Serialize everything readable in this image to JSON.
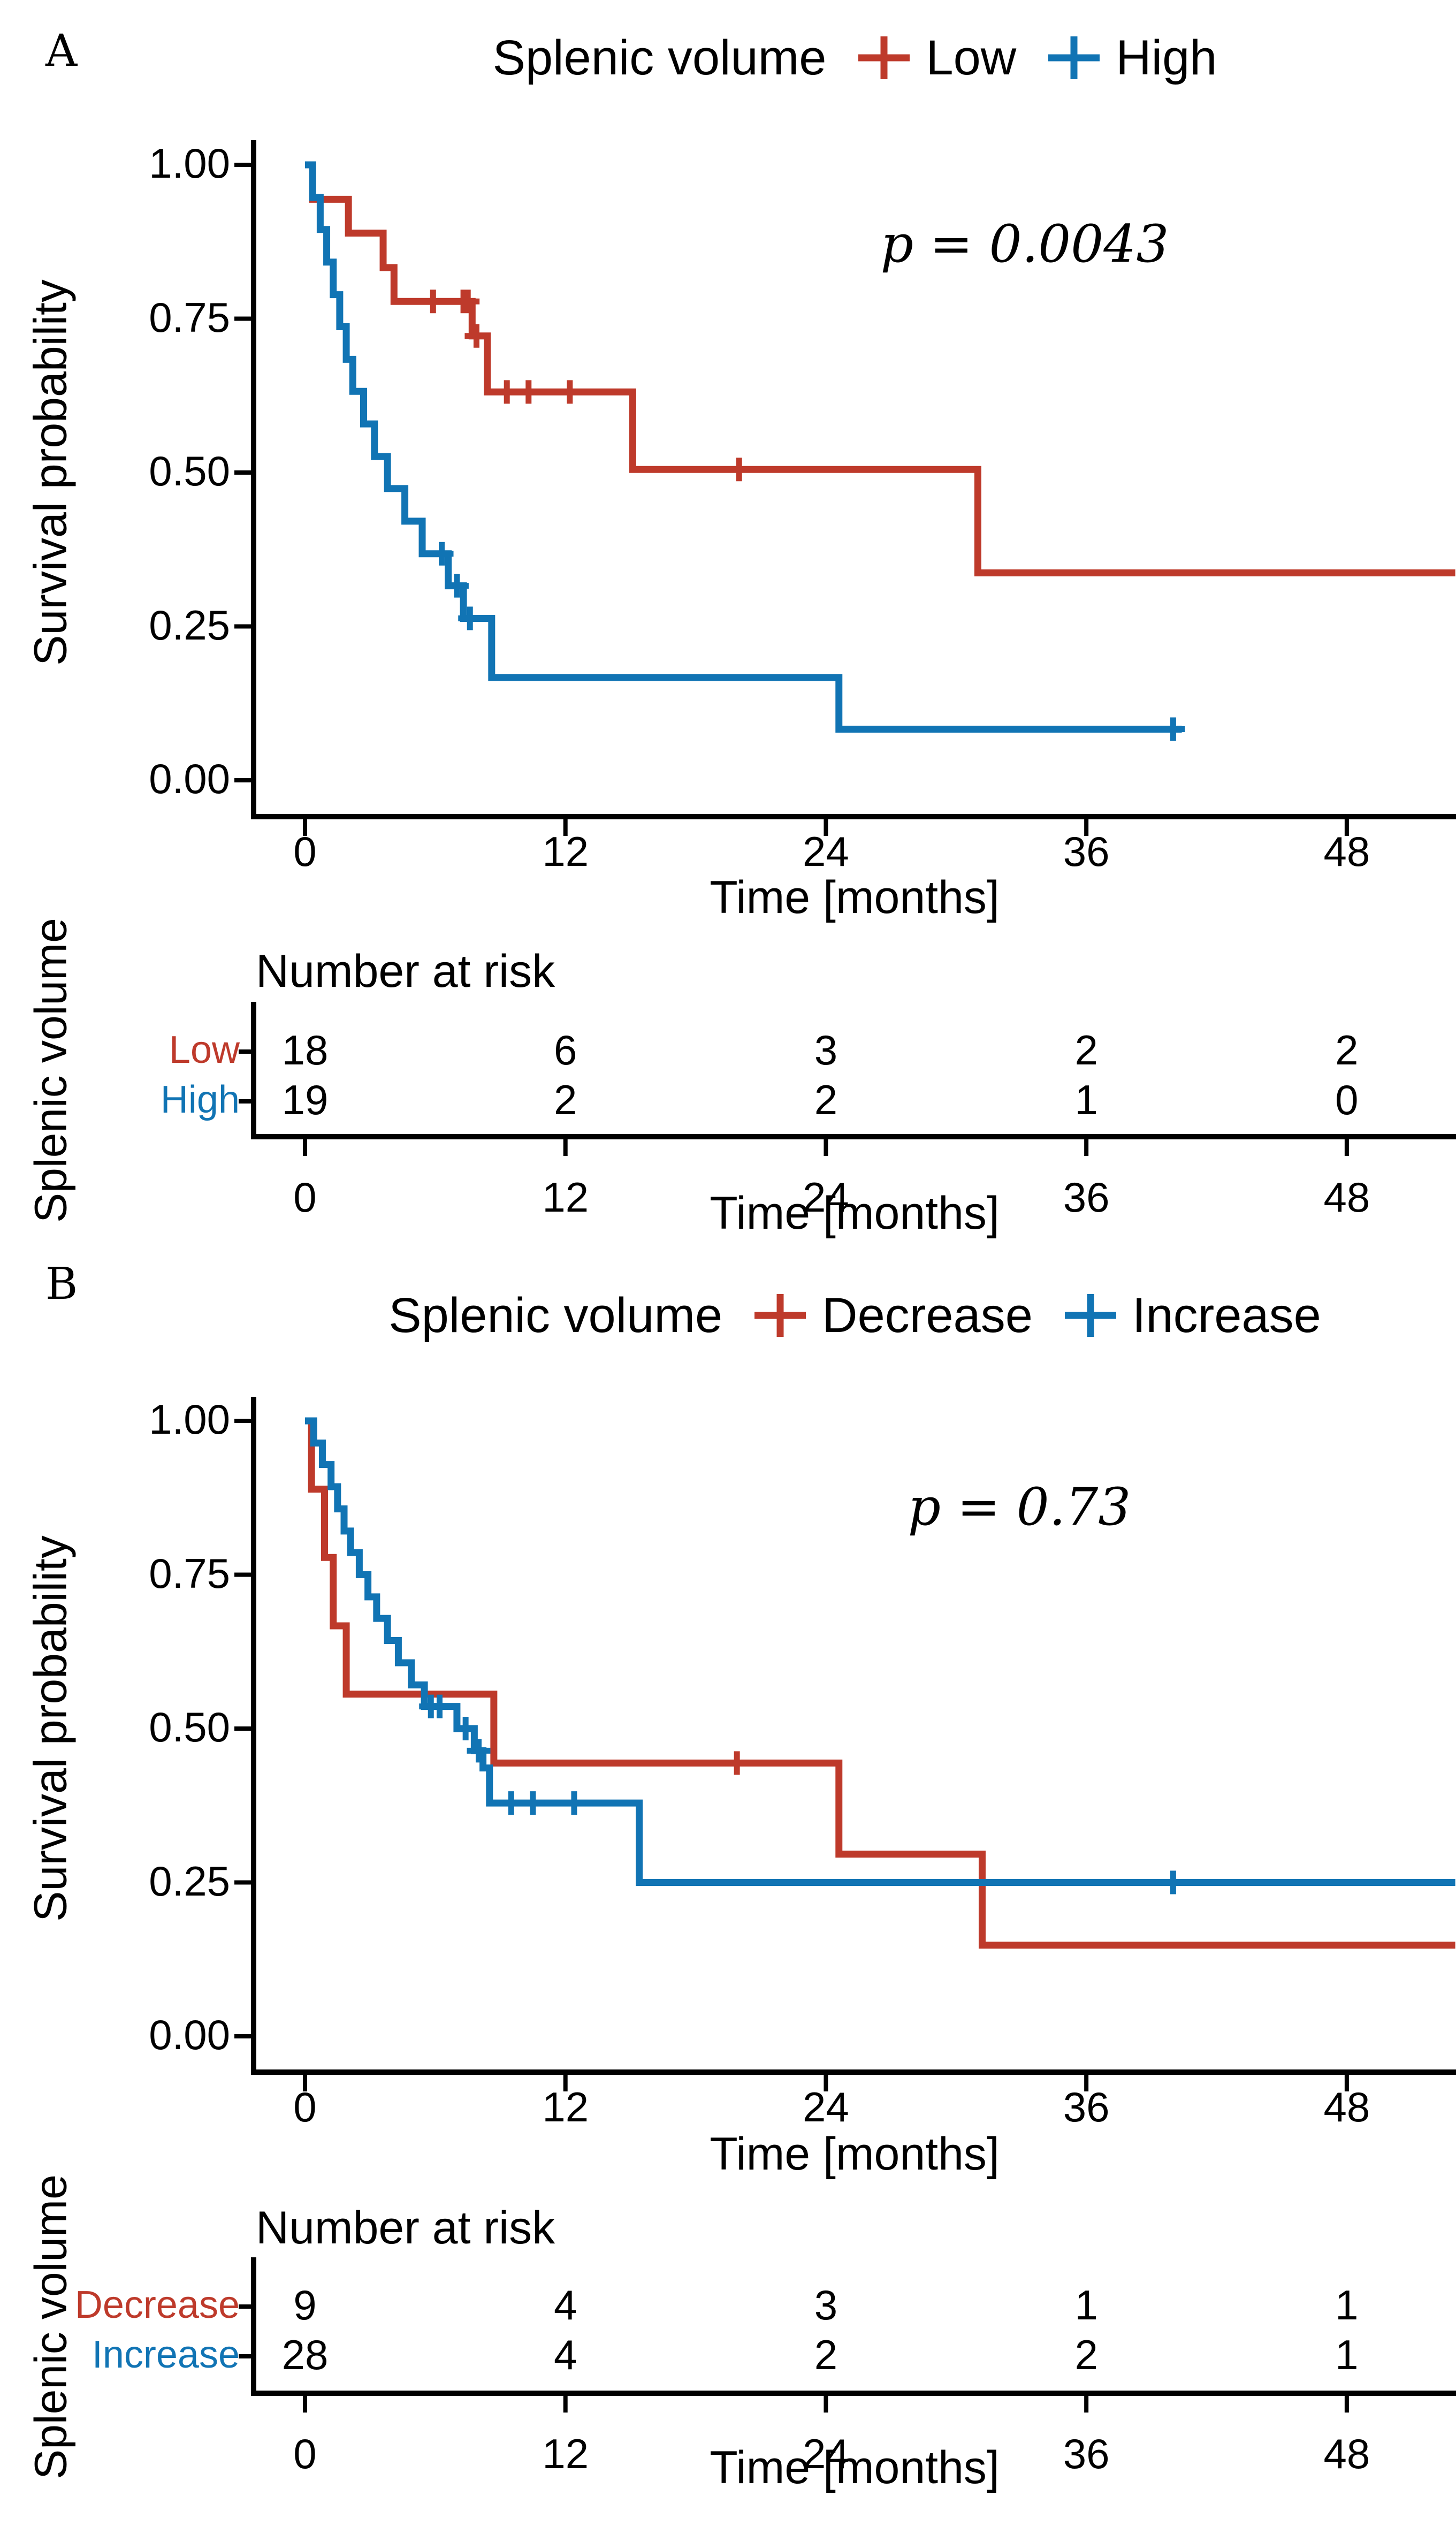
{
  "figure": {
    "background": "#ffffff",
    "text_color": "#000000"
  },
  "chart_data": [
    {
      "type": "line",
      "subtype": "kaplan-meier-step",
      "panel_label": "A",
      "legend_title": "Splenic volume",
      "p_value": "p = 0.0043",
      "xlabel": "Time [months]",
      "ylabel": "Survival probability",
      "x_ticks": [
        0,
        12,
        24,
        36,
        48
      ],
      "y_tick_labels": [
        "0.00",
        "0.25",
        "0.50",
        "0.75",
        "1.00"
      ],
      "xlim": [
        0,
        53
      ],
      "ylim": [
        0,
        1
      ],
      "grid": false,
      "legend_position": "top",
      "series": [
        {
          "name": "Low",
          "color": "#BE3A2B",
          "steps": [
            [
              0,
              1.0
            ],
            [
              0.35,
              0.944
            ],
            [
              2.0,
              0.889
            ],
            [
              3.6,
              0.833
            ],
            [
              4.1,
              0.778
            ],
            [
              7.7,
              0.722
            ],
            [
              8.4,
              0.631
            ],
            [
              15.1,
              0.505
            ],
            [
              31.0,
              0.337
            ]
          ],
          "end_t": 53.0,
          "censors": [
            [
              5.9,
              0.778
            ],
            [
              7.3,
              0.778
            ],
            [
              7.5,
              0.778
            ],
            [
              7.9,
              0.722
            ],
            [
              9.3,
              0.631
            ],
            [
              10.3,
              0.631
            ],
            [
              12.2,
              0.631
            ],
            [
              20.0,
              0.505
            ]
          ]
        },
        {
          "name": "High",
          "color": "#1174B4",
          "steps": [
            [
              0,
              1.0
            ],
            [
              0.35,
              0.947
            ],
            [
              0.7,
              0.895
            ],
            [
              1.0,
              0.842
            ],
            [
              1.3,
              0.789
            ],
            [
              1.6,
              0.737
            ],
            [
              1.9,
              0.684
            ],
            [
              2.2,
              0.632
            ],
            [
              2.7,
              0.579
            ],
            [
              3.2,
              0.526
            ],
            [
              3.8,
              0.474
            ],
            [
              4.6,
              0.421
            ],
            [
              5.4,
              0.368
            ],
            [
              6.6,
              0.316
            ],
            [
              7.3,
              0.263
            ],
            [
              8.6,
              0.167
            ],
            [
              24.6,
              0.083
            ]
          ],
          "end_t": 40.4,
          "censors": [
            [
              6.3,
              0.368
            ],
            [
              7.0,
              0.316
            ],
            [
              7.6,
              0.263
            ],
            [
              40.0,
              0.083
            ]
          ]
        }
      ],
      "risk_table": {
        "header": "Number at risk",
        "group_label": "Splenic volume",
        "time_points": [
          0,
          12,
          24,
          36,
          48
        ],
        "rows": [
          {
            "name": "Low",
            "color": "#BE3A2B",
            "values": [
              "18",
              "6",
              "3",
              "2",
              "2"
            ]
          },
          {
            "name": "High",
            "color": "#1174B4",
            "values": [
              "19",
              "2",
              "2",
              "1",
              "0"
            ]
          }
        ]
      }
    },
    {
      "type": "line",
      "subtype": "kaplan-meier-step",
      "panel_label": "B",
      "legend_title": "Splenic volume",
      "p_value": "p = 0.73",
      "xlabel": "Time [months]",
      "ylabel": "Survival probability",
      "x_ticks": [
        0,
        12,
        24,
        36,
        48
      ],
      "y_tick_labels": [
        "0.00",
        "0.25",
        "0.50",
        "0.75",
        "1.00"
      ],
      "xlim": [
        0,
        53
      ],
      "ylim": [
        0,
        1
      ],
      "grid": false,
      "legend_position": "top",
      "series": [
        {
          "name": "Decrease",
          "color": "#BE3A2B",
          "steps": [
            [
              0,
              1.0
            ],
            [
              0.3,
              0.889
            ],
            [
              0.9,
              0.778
            ],
            [
              1.3,
              0.667
            ],
            [
              1.9,
              0.556
            ],
            [
              8.7,
              0.444
            ],
            [
              24.6,
              0.296
            ],
            [
              31.2,
              0.148
            ]
          ],
          "end_t": 53.0,
          "censors": [
            [
              19.9,
              0.444
            ]
          ]
        },
        {
          "name": "Increase",
          "color": "#1174B4",
          "steps": [
            [
              0,
              1.0
            ],
            [
              0.4,
              0.964
            ],
            [
              0.8,
              0.929
            ],
            [
              1.2,
              0.893
            ],
            [
              1.5,
              0.857
            ],
            [
              1.8,
              0.821
            ],
            [
              2.1,
              0.786
            ],
            [
              2.5,
              0.75
            ],
            [
              2.9,
              0.714
            ],
            [
              3.3,
              0.679
            ],
            [
              3.8,
              0.643
            ],
            [
              4.3,
              0.607
            ],
            [
              4.9,
              0.571
            ],
            [
              5.5,
              0.536
            ],
            [
              7.0,
              0.5
            ],
            [
              7.8,
              0.464
            ],
            [
              8.2,
              0.436
            ],
            [
              8.5,
              0.379
            ],
            [
              15.4,
              0.25
            ]
          ],
          "end_t": 53.0,
          "censors": [
            [
              5.8,
              0.536
            ],
            [
              6.2,
              0.536
            ],
            [
              7.4,
              0.5
            ],
            [
              8.0,
              0.464
            ],
            [
              9.5,
              0.379
            ],
            [
              10.5,
              0.379
            ],
            [
              12.4,
              0.379
            ],
            [
              40.0,
              0.25
            ]
          ]
        }
      ],
      "risk_table": {
        "header": "Number at risk",
        "group_label": "Splenic volume",
        "time_points": [
          0,
          12,
          24,
          36,
          48
        ],
        "rows": [
          {
            "name": "Decrease",
            "color": "#BE3A2B",
            "values": [
              "9",
              "4",
              "3",
              "1",
              "1"
            ]
          },
          {
            "name": "Increase",
            "color": "#1174B4",
            "values": [
              "28",
              "4",
              "2",
              "2",
              "1"
            ]
          }
        ]
      }
    }
  ]
}
